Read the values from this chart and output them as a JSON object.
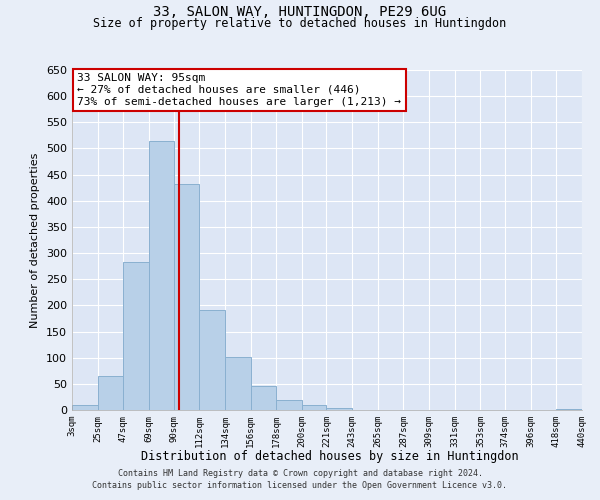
{
  "title": "33, SALON WAY, HUNTINGDON, PE29 6UG",
  "subtitle": "Size of property relative to detached houses in Huntingdon",
  "xlabel": "Distribution of detached houses by size in Huntingdon",
  "ylabel": "Number of detached properties",
  "bar_color": "#b8d0e8",
  "bar_edge_color": "#8ab0d0",
  "background_color": "#e8eef8",
  "plot_bg_color": "#dde6f5",
  "grid_color": "#ffffff",
  "vline_color": "#cc0000",
  "vline_x": 95,
  "annotation_box_color": "#ffffff",
  "annotation_edge_color": "#cc0000",
  "annotation_title": "33 SALON WAY: 95sqm",
  "annotation_line1": "← 27% of detached houses are smaller (446)",
  "annotation_line2": "73% of semi-detached houses are larger (1,213) →",
  "bins_left": [
    3,
    25,
    47,
    69,
    90,
    112,
    134,
    156,
    178,
    200,
    221,
    243,
    265,
    287,
    309,
    331,
    353,
    374,
    396,
    418
  ],
  "bins_right": [
    25,
    47,
    69,
    90,
    112,
    134,
    156,
    178,
    200,
    221,
    243,
    265,
    287,
    309,
    331,
    353,
    374,
    396,
    418,
    440
  ],
  "bar_heights": [
    10,
    65,
    283,
    515,
    433,
    192,
    102,
    46,
    20,
    10,
    3,
    0,
    0,
    0,
    0,
    0,
    0,
    0,
    0,
    2
  ],
  "tick_labels": [
    "3sqm",
    "25sqm",
    "47sqm",
    "69sqm",
    "90sqm",
    "112sqm",
    "134sqm",
    "156sqm",
    "178sqm",
    "200sqm",
    "221sqm",
    "243sqm",
    "265sqm",
    "287sqm",
    "309sqm",
    "331sqm",
    "353sqm",
    "374sqm",
    "396sqm",
    "418sqm",
    "440sqm"
  ],
  "ylim": [
    0,
    650
  ],
  "yticks": [
    0,
    50,
    100,
    150,
    200,
    250,
    300,
    350,
    400,
    450,
    500,
    550,
    600,
    650
  ],
  "footnote1": "Contains HM Land Registry data © Crown copyright and database right 2024.",
  "footnote2": "Contains public sector information licensed under the Open Government Licence v3.0."
}
